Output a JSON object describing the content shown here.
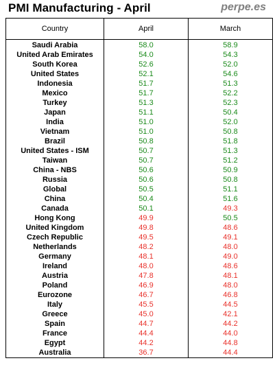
{
  "header": {
    "title": "PMI Manufacturing - April",
    "brand": "perpe.es"
  },
  "colors": {
    "above_50": "#1a8a1a",
    "below_50": "#e8302a"
  },
  "chart_data": {
    "type": "table",
    "title": "PMI Manufacturing - April",
    "columns": [
      "Country",
      "April",
      "March"
    ],
    "rows": [
      {
        "country": "Saudi Arabia",
        "april": "58.0",
        "march": "58.9"
      },
      {
        "country": "United Arab Emirates",
        "april": "54.0",
        "march": "54.3"
      },
      {
        "country": "South Korea",
        "april": "52.6",
        "march": "52.0"
      },
      {
        "country": "United States",
        "april": "52.1",
        "march": "54.6"
      },
      {
        "country": "Indonesia",
        "april": "51.7",
        "march": "51.3"
      },
      {
        "country": "Mexico",
        "april": "51.7",
        "march": "52.2"
      },
      {
        "country": "Turkey",
        "april": "51.3",
        "march": "52.3"
      },
      {
        "country": "Japan",
        "april": "51.1",
        "march": "50.4"
      },
      {
        "country": "India",
        "april": "51.0",
        "march": "52.0"
      },
      {
        "country": "Vietnam",
        "april": "51.0",
        "march": "50.8"
      },
      {
        "country": "Brazil",
        "april": "50.8",
        "march": "51.8"
      },
      {
        "country": "United States - ISM",
        "april": "50.7",
        "march": "51.3"
      },
      {
        "country": "Taiwan",
        "april": "50.7",
        "march": "51.2"
      },
      {
        "country": "China - NBS",
        "april": "50.6",
        "march": "50.9"
      },
      {
        "country": "Russia",
        "april": "50.6",
        "march": "50.8"
      },
      {
        "country": "Global",
        "april": "50.5",
        "march": "51.1"
      },
      {
        "country": "China",
        "april": "50.4",
        "march": "51.6"
      },
      {
        "country": "Canada",
        "april": "50.1",
        "march": "49.3"
      },
      {
        "country": "Hong Kong",
        "april": "49.9",
        "march": "50.5"
      },
      {
        "country": "United Kingdom",
        "april": "49.8",
        "march": "48.6"
      },
      {
        "country": "Czech Republic",
        "april": "49.5",
        "march": "49.1"
      },
      {
        "country": "Netherlands",
        "april": "48.2",
        "march": "48.0"
      },
      {
        "country": "Germany",
        "april": "48.1",
        "march": "49.0"
      },
      {
        "country": "Ireland",
        "april": "48.0",
        "march": "48.6"
      },
      {
        "country": "Austria",
        "april": "47.8",
        "march": "48.1"
      },
      {
        "country": "Poland",
        "april": "46.9",
        "march": "48.0"
      },
      {
        "country": "Eurozone",
        "april": "46.7",
        "march": "46.8"
      },
      {
        "country": "Italy",
        "april": "45.5",
        "march": "44.5"
      },
      {
        "country": "Greece",
        "april": "45.0",
        "march": "42.1"
      },
      {
        "country": "Spain",
        "april": "44.7",
        "march": "44.2"
      },
      {
        "country": "France",
        "april": "44.4",
        "march": "44.0"
      },
      {
        "country": "Egypt",
        "april": "44.2",
        "march": "44.8"
      },
      {
        "country": "Australia",
        "april": "36.7",
        "march": "44.4"
      }
    ]
  }
}
